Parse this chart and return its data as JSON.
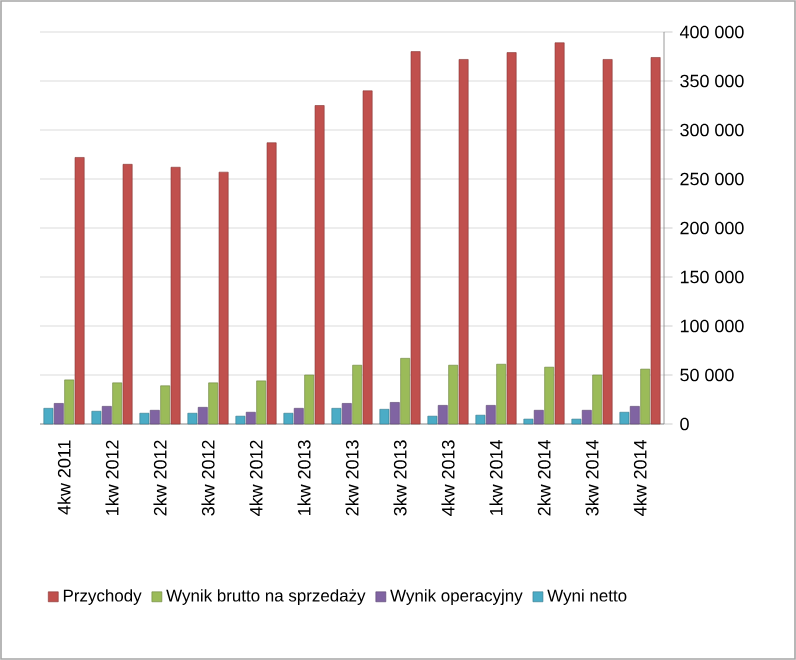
{
  "chart_data": {
    "type": "bar",
    "categories": [
      "4kw 2011",
      "1kw 2012",
      "2kw 2012",
      "3kw 2012",
      "4kw 2012",
      "1kw 2013",
      "2kw 2013",
      "3kw 2013",
      "4kw 2013",
      "1kw 2014",
      "2kw 2014",
      "3kw 2014",
      "4kw 2014"
    ],
    "series": [
      {
        "name": "Przychody",
        "color": "#c0504d",
        "values": [
          272000,
          265000,
          262000,
          257000,
          287000,
          325000,
          340000,
          380000,
          372000,
          379000,
          389000,
          372000,
          374000
        ]
      },
      {
        "name": "Wynik brutto na sprzedaży",
        "color": "#9bbb59",
        "values": [
          45000,
          42000,
          39000,
          42000,
          44000,
          50000,
          60000,
          67000,
          60000,
          61000,
          58000,
          50000,
          56000
        ]
      },
      {
        "name": "Wynik operacyjny",
        "color": "#8064a2",
        "values": [
          21000,
          18000,
          14000,
          17000,
          12000,
          16000,
          21000,
          22000,
          19000,
          19000,
          14000,
          14000,
          18000
        ]
      },
      {
        "name": "Wyni netto",
        "color": "#4bacc6",
        "values": [
          16000,
          13000,
          11000,
          11000,
          8000,
          11000,
          16000,
          15000,
          8000,
          9000,
          5000,
          5000,
          12000
        ]
      }
    ],
    "ylim": [
      0,
      400000
    ],
    "yticks": [
      0,
      {
        "value": 50000,
        "label": "50 000"
      },
      {
        "value": 100000,
        "label": "100 000"
      },
      {
        "value": 150000,
        "label": "150 000"
      },
      {
        "value": 200000,
        "label": "200 000"
      },
      {
        "value": 250000,
        "label": "250 000"
      },
      {
        "value": 300000,
        "label": "300 000"
      },
      {
        "value": 350000,
        "label": "350 000"
      },
      {
        "value": 400000,
        "label": "400 000"
      }
    ],
    "grid": "y",
    "legend": "bottom"
  }
}
